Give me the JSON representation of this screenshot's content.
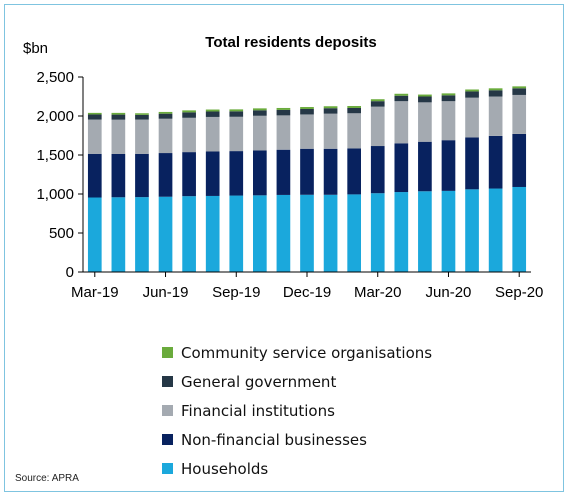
{
  "chart_data": {
    "type": "bar",
    "stacked": true,
    "title": "Total residents deposits",
    "ylabel": "$bn",
    "xlabel": "",
    "ylim": [
      0,
      2500
    ],
    "yticks": [
      "0",
      "500",
      "1,000",
      "1,500",
      "2,000",
      "2,500"
    ],
    "ytick_values": [
      0,
      500,
      1000,
      1500,
      2000,
      2500
    ],
    "categories": [
      "Mar-19",
      "Apr-19",
      "May-19",
      "Jun-19",
      "Jul-19",
      "Aug-19",
      "Sep-19",
      "Oct-19",
      "Nov-19",
      "Dec-19",
      "Jan-20",
      "Feb-20",
      "Mar-20",
      "Apr-20",
      "May-20",
      "Jun-20",
      "Jul-20",
      "Aug-20",
      "Sep-20"
    ],
    "xtick_labels": [
      "Mar-19",
      "Jun-19",
      "Sep-19",
      "Dec-19",
      "Mar-20",
      "Jun-20",
      "Sep-20"
    ],
    "xtick_indices": [
      0,
      3,
      6,
      9,
      12,
      15,
      18
    ],
    "grid": false,
    "legend_position": "bottom",
    "series": [
      {
        "name": "Households",
        "color": "#1ba8dc",
        "values": [
          955,
          958,
          960,
          965,
          972,
          975,
          980,
          983,
          988,
          990,
          990,
          995,
          1010,
          1025,
          1035,
          1040,
          1060,
          1070,
          1090
        ]
      },
      {
        "name": "Non-financial businesses",
        "color": "#08225f",
        "values": [
          560,
          555,
          555,
          560,
          565,
          570,
          570,
          575,
          580,
          590,
          590,
          590,
          605,
          625,
          635,
          650,
          665,
          675,
          680
        ]
      },
      {
        "name": "Financial institutions",
        "color": "#a4aab1",
        "values": [
          440,
          440,
          440,
          440,
          440,
          443,
          440,
          445,
          440,
          440,
          450,
          450,
          505,
          540,
          505,
          500,
          510,
          505,
          500
        ]
      },
      {
        "name": "General government",
        "color": "#253746",
        "values": [
          65,
          65,
          60,
          65,
          70,
          70,
          70,
          70,
          70,
          70,
          70,
          68,
          70,
          70,
          75,
          75,
          80,
          80,
          85
        ]
      },
      {
        "name": "Community service organisations",
        "color": "#6aab3c",
        "values": [
          20,
          22,
          20,
          22,
          25,
          25,
          25,
          25,
          25,
          25,
          25,
          25,
          25,
          25,
          25,
          25,
          25,
          25,
          25
        ]
      }
    ],
    "legend_order": [
      "Community service organisations",
      "General government",
      "Financial institutions",
      "Non-financial businesses",
      "Households"
    ]
  },
  "source": "Source: APRA"
}
